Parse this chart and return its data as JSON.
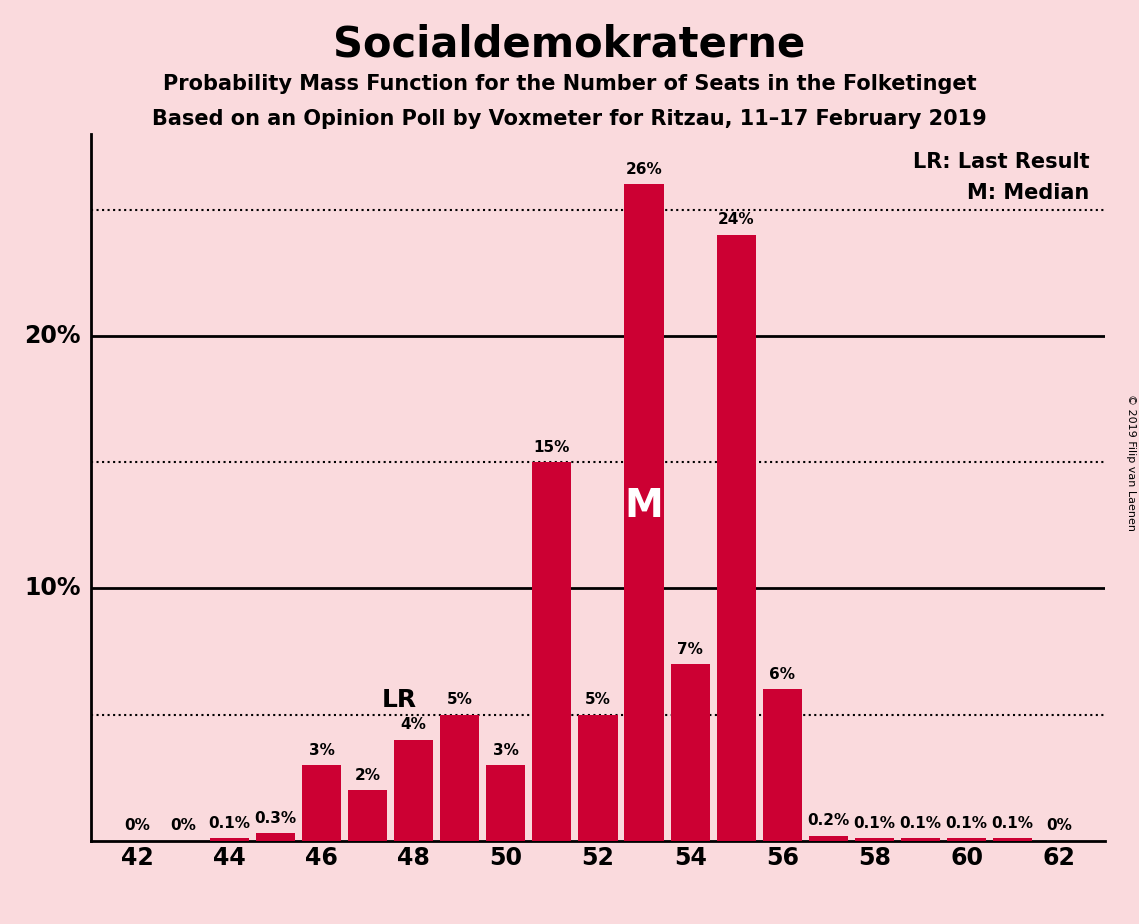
{
  "title": "Socialdemokraterne",
  "subtitle1": "Probability Mass Function for the Number of Seats in the Folketinget",
  "subtitle2": "Based on an Opinion Poll by Voxmeter for Ritzau, 11–17 February 2019",
  "copyright": "© 2019 Filip van Laenen",
  "background_color": "#fadadd",
  "bar_color": "#cc0033",
  "seats": [
    42,
    43,
    44,
    45,
    46,
    47,
    48,
    49,
    50,
    51,
    52,
    53,
    54,
    55,
    56,
    57,
    58,
    59,
    60,
    61,
    62
  ],
  "probabilities": [
    0.0,
    0.0,
    0.001,
    0.003,
    0.03,
    0.02,
    0.04,
    0.05,
    0.03,
    0.15,
    0.05,
    0.26,
    0.07,
    0.24,
    0.06,
    0.002,
    0.001,
    0.001,
    0.001,
    0.001,
    0.0
  ],
  "labels": [
    "0%",
    "0%",
    "0.1%",
    "0.3%",
    "3%",
    "2%",
    "4%",
    "5%",
    "3%",
    "15%",
    "5%",
    "26%",
    "7%",
    "24%",
    "6%",
    "0.2%",
    "0.1%",
    "0.1%",
    "0.1%",
    "0.1%",
    "0%"
  ],
  "last_result_seat": 47,
  "last_result_label": "LR",
  "median_seat": 53,
  "median_label_legend": "M: Median",
  "median_text": "M",
  "lr_legend": "LR: Last Result",
  "xlim": [
    41,
    63
  ],
  "ylim": [
    0,
    0.28
  ],
  "xticks": [
    42,
    44,
    46,
    48,
    50,
    52,
    54,
    56,
    58,
    60,
    62
  ],
  "dotted_lines": [
    0.05,
    0.15,
    0.25
  ],
  "solid_lines": [
    0.1,
    0.2
  ],
  "ytick_positions": [
    0.1,
    0.2
  ],
  "ytick_labels": [
    "10%",
    "20%"
  ],
  "bar_width": 0.85,
  "label_fontsize": 11,
  "tick_fontsize": 17,
  "title_fontsize": 30,
  "subtitle_fontsize": 15,
  "legend_fontsize": 15,
  "lr_text_fontsize": 18,
  "median_text_fontsize": 28
}
